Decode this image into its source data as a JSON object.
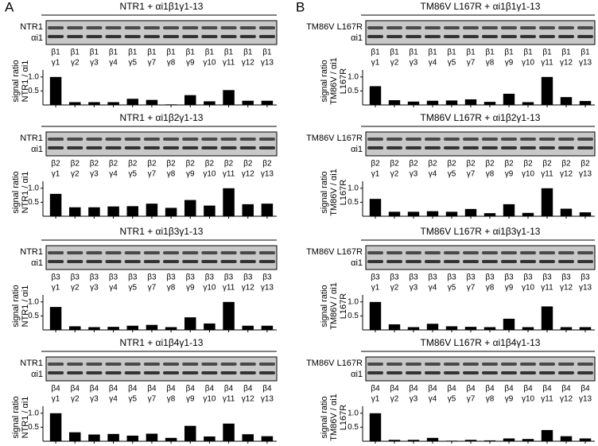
{
  "panel_labels": [
    "A",
    "B"
  ],
  "chart_data": [
    {
      "type": "bar",
      "title": "NTR1 + αi1β1γ1-13",
      "blot_labels": [
        "NTR1",
        "αi1"
      ],
      "ylabel": [
        "signal ratio",
        "NTR1 / αi1"
      ],
      "group_labels": [
        "β1",
        "β1",
        "β1",
        "β1",
        "β1",
        "β1",
        "β1",
        "β1",
        "β1",
        "β1",
        "β1",
        "β1"
      ],
      "categories": [
        "γ1",
        "γ2",
        "γ3",
        "γ4",
        "γ5",
        "γ7",
        "γ8",
        "γ9",
        "γ10",
        "γ11",
        "γ12",
        "γ13"
      ],
      "values": [
        1.0,
        0.1,
        0.1,
        0.1,
        0.22,
        0.18,
        0.02,
        0.35,
        0.13,
        0.53,
        0.15,
        0.15
      ],
      "color": "#000000",
      "ylim": [
        0,
        1.25
      ],
      "yticks": [
        0.5,
        {
          "value": 1,
          "label": "1.0"
        }
      ]
    },
    {
      "type": "bar",
      "title": "NTR1 + αi1β2γ1-13",
      "blot_labels": [
        "NTR1",
        "αi1"
      ],
      "ylabel": [
        "signal ratio",
        "NTR1 / αi1"
      ],
      "group_labels": [
        "β2",
        "β2",
        "β2",
        "β2",
        "β2",
        "β2",
        "β2",
        "β2",
        "β2",
        "β2",
        "β2",
        "β2"
      ],
      "categories": [
        "γ1",
        "γ2",
        "γ3",
        "γ4",
        "γ5",
        "γ7",
        "γ8",
        "γ9",
        "γ10",
        "γ11",
        "γ12",
        "γ13"
      ],
      "values": [
        0.8,
        0.32,
        0.32,
        0.35,
        0.36,
        0.45,
        0.3,
        0.58,
        0.38,
        1.0,
        0.43,
        0.45
      ],
      "color": "#000000",
      "ylim": [
        0,
        1.25
      ],
      "yticks": [
        0.5,
        {
          "value": 1,
          "label": "1.0"
        }
      ]
    },
    {
      "type": "bar",
      "title": "NTR1 + αi1β3γ1-13",
      "blot_labels": [
        "NTR1",
        "αi1"
      ],
      "ylabel": [
        "signal ratio",
        "NTR1 / αi1"
      ],
      "group_labels": [
        "β3",
        "β3",
        "β3",
        "β3",
        "β3",
        "β3",
        "β3",
        "β3",
        "β3",
        "β3",
        "β3",
        "β3"
      ],
      "categories": [
        "γ1",
        "γ2",
        "γ3",
        "γ4",
        "γ5",
        "γ7",
        "γ8",
        "γ9",
        "γ10",
        "γ11",
        "γ12",
        "γ13"
      ],
      "values": [
        0.82,
        0.13,
        0.1,
        0.11,
        0.15,
        0.18,
        0.1,
        0.45,
        0.23,
        1.0,
        0.15,
        0.15
      ],
      "color": "#000000",
      "ylim": [
        0,
        1.25
      ],
      "yticks": [
        0.5,
        {
          "value": 1,
          "label": "1.0"
        }
      ]
    },
    {
      "type": "bar",
      "title": "NTR1 + αi1β4γ1-13",
      "blot_labels": [
        "NTR1",
        "αi1"
      ],
      "ylabel": [
        "signal ratio",
        "NTR1 / αi1"
      ],
      "group_labels": [
        "β4",
        "β4",
        "β4",
        "β4",
        "β4",
        "β4",
        "β4",
        "β4",
        "β4",
        "β4",
        "β4",
        "β4"
      ],
      "categories": [
        "γ1",
        "γ2",
        "γ3",
        "γ4",
        "γ5",
        "γ7",
        "γ8",
        "γ9",
        "γ10",
        "γ11",
        "γ12",
        "γ13"
      ],
      "values": [
        1.0,
        0.32,
        0.24,
        0.26,
        0.2,
        0.27,
        0.12,
        0.55,
        0.17,
        0.63,
        0.25,
        0.18
      ],
      "color": "#000000",
      "ylim": [
        0,
        1.25
      ],
      "yticks": [
        0.5,
        {
          "value": 1,
          "label": "1.0"
        }
      ]
    },
    {
      "type": "bar",
      "title": "TM86V L167R + αi1β1γ1-13",
      "blot_labels": [
        "TM86V L167R",
        "αi1"
      ],
      "ylabel": [
        "signal ratio",
        "TM86V / αi1",
        "L167R"
      ],
      "group_labels": [
        "β1",
        "β1",
        "β1",
        "β1",
        "β1",
        "β1",
        "β1",
        "β1",
        "β1",
        "β1",
        "β1",
        "β1"
      ],
      "categories": [
        "γ1",
        "γ2",
        "γ3",
        "γ4",
        "γ5",
        "γ7",
        "γ8",
        "γ9",
        "γ10",
        "γ11",
        "γ12",
        "γ13"
      ],
      "values": [
        0.67,
        0.17,
        0.12,
        0.15,
        0.16,
        0.2,
        0.11,
        0.4,
        0.1,
        1.0,
        0.28,
        0.14
      ],
      "color": "#000000",
      "ylim": [
        0,
        1.25
      ],
      "yticks": [
        0.5,
        {
          "value": 1,
          "label": "1.0"
        }
      ]
    },
    {
      "type": "bar",
      "title": "TM86V L167R + αi1β2γ1-13",
      "blot_labels": [
        "TM86V L167R",
        "αi1"
      ],
      "ylabel": [
        "signal ratio",
        "TM86V / αi1",
        "L167R"
      ],
      "group_labels": [
        "β2",
        "β2",
        "β2",
        "β2",
        "β2",
        "β2",
        "β2",
        "β2",
        "β2",
        "β2",
        "β2",
        "β2"
      ],
      "categories": [
        "γ1",
        "γ2",
        "γ3",
        "γ4",
        "γ5",
        "γ7",
        "γ8",
        "γ9",
        "γ10",
        "γ11",
        "γ12",
        "γ13"
      ],
      "values": [
        0.62,
        0.16,
        0.16,
        0.18,
        0.16,
        0.26,
        0.11,
        0.43,
        0.12,
        1.0,
        0.27,
        0.14
      ],
      "color": "#000000",
      "ylim": [
        0,
        1.25
      ],
      "yticks": [
        0.5,
        {
          "value": 1,
          "label": "1.0"
        }
      ]
    },
    {
      "type": "bar",
      "title": "TM86V L167R + αi1β3γ1-13",
      "blot_labels": [
        "TM86V L167R",
        "αi1"
      ],
      "ylabel": [
        "signal ratio",
        "TM86V / αi1",
        "L167R"
      ],
      "group_labels": [
        "β3",
        "β3",
        "β3",
        "β3",
        "β3",
        "β3",
        "β3",
        "β3",
        "β3",
        "β3",
        "β3",
        "β3"
      ],
      "categories": [
        "γ1",
        "γ2",
        "γ3",
        "γ4",
        "γ5",
        "γ7",
        "γ8",
        "γ9",
        "γ10",
        "γ11",
        "γ12",
        "γ13"
      ],
      "values": [
        1.0,
        0.2,
        0.1,
        0.22,
        0.13,
        0.11,
        0.1,
        0.4,
        0.1,
        0.84,
        0.1,
        0.1
      ],
      "color": "#000000",
      "ylim": [
        0,
        1.25
      ],
      "yticks": [
        0.5,
        {
          "value": 1,
          "label": "1.0"
        }
      ]
    },
    {
      "type": "bar",
      "title": "TM86V L167R + αi1β4γ1-13",
      "blot_labels": [
        "TM86V L167R",
        "αi1"
      ],
      "ylabel": [
        "signal ratio",
        "TM86V / αi1",
        "L167R"
      ],
      "group_labels": [
        "β4",
        "β4",
        "β4",
        "β4",
        "β4",
        "β4",
        "β4",
        "β4",
        "β4",
        "β4",
        "β4",
        "β4"
      ],
      "categories": [
        "γ1",
        "γ2",
        "γ3",
        "γ4",
        "γ5",
        "γ7",
        "γ8",
        "γ9",
        "γ10",
        "γ11",
        "γ12",
        "γ13"
      ],
      "values": [
        1.0,
        0.05,
        0.05,
        0.12,
        0.02,
        0.05,
        0.03,
        0.1,
        0.08,
        0.4,
        0.18,
        0.1
      ],
      "color": "#000000",
      "ylim": [
        0,
        1.25
      ],
      "yticks": [
        0.5,
        {
          "value": 1,
          "label": "1.0"
        }
      ]
    }
  ]
}
